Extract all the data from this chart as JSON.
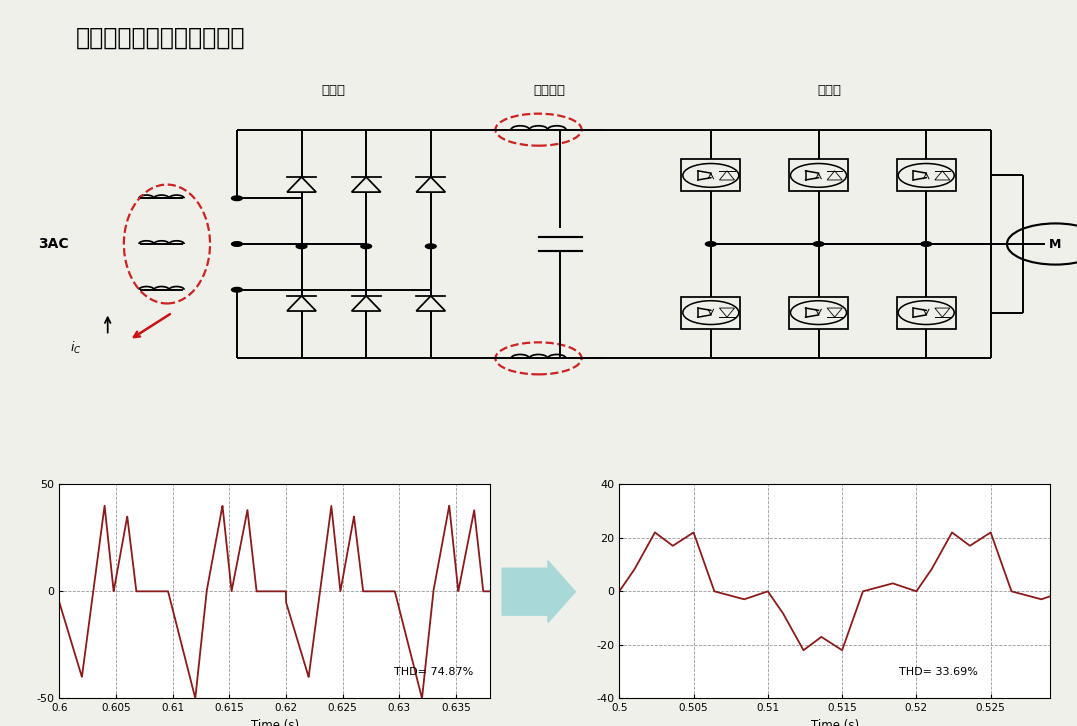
{
  "title": "变频器电抗器的选择和作用",
  "bg_color": "#f0f0ea",
  "label1": "整流桥",
  "label2": "直流回路",
  "label3": "逆变器",
  "plot1_thd": "THD= 74.87%",
  "plot2_thd": "THD= 33.69%",
  "plot1_xlabel": "Time (s)",
  "plot2_xlabel": "Time (s)",
  "plot1_xlim": [
    0.6,
    0.638
  ],
  "plot2_xlim": [
    0.5,
    0.529
  ],
  "plot1_ylim": [
    -50,
    50
  ],
  "plot2_ylim": [
    -40,
    40
  ],
  "plot1_xticks": [
    0.6,
    0.605,
    0.61,
    0.615,
    0.62,
    0.625,
    0.63,
    0.635
  ],
  "plot2_xticks": [
    0.5,
    0.505,
    0.51,
    0.515,
    0.52,
    0.525
  ],
  "plot1_yticks": [
    -50,
    0,
    50
  ],
  "plot2_yticks": [
    -40,
    -20,
    0,
    20,
    40
  ],
  "line_color": "#8B1A1A",
  "grid_color": "#999999",
  "arrow_color": "#a8d8d8",
  "circ_color": "black",
  "red_dash": "#cc2222"
}
